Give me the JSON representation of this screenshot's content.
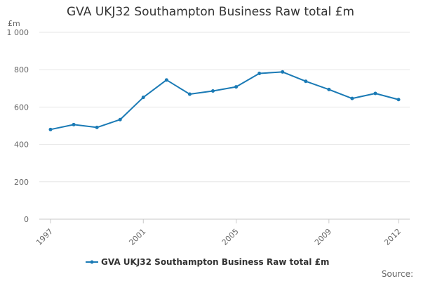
{
  "chart_data": {
    "type": "line",
    "title": "GVA UKJ32 Southampton Business Raw total £m",
    "ylabel": "£m",
    "ylim": [
      0,
      1000
    ],
    "yticks": [
      "0",
      "200",
      "400",
      "600",
      "800",
      "1 000"
    ],
    "ytick_values": [
      0,
      200,
      400,
      600,
      800,
      1000
    ],
    "xtick_labels": [
      "1997",
      "2001",
      "2005",
      "2009",
      "2012"
    ],
    "x": [
      1997,
      1998,
      1999,
      2000,
      2001,
      2002,
      2003,
      2004,
      2005,
      2006,
      2007,
      2008,
      2009,
      2010,
      2011,
      2012
    ],
    "series": [
      {
        "name": "GVA UKJ32 Southampton Business Raw total £m",
        "values": [
          480,
          506,
          491,
          533,
          652,
          745,
          669,
          686,
          708,
          780,
          788,
          738,
          694,
          646,
          673,
          640
        ],
        "color": "#1a7ab5"
      }
    ],
    "grid": true,
    "legend": "bottom-center"
  },
  "source_label": "Source:"
}
